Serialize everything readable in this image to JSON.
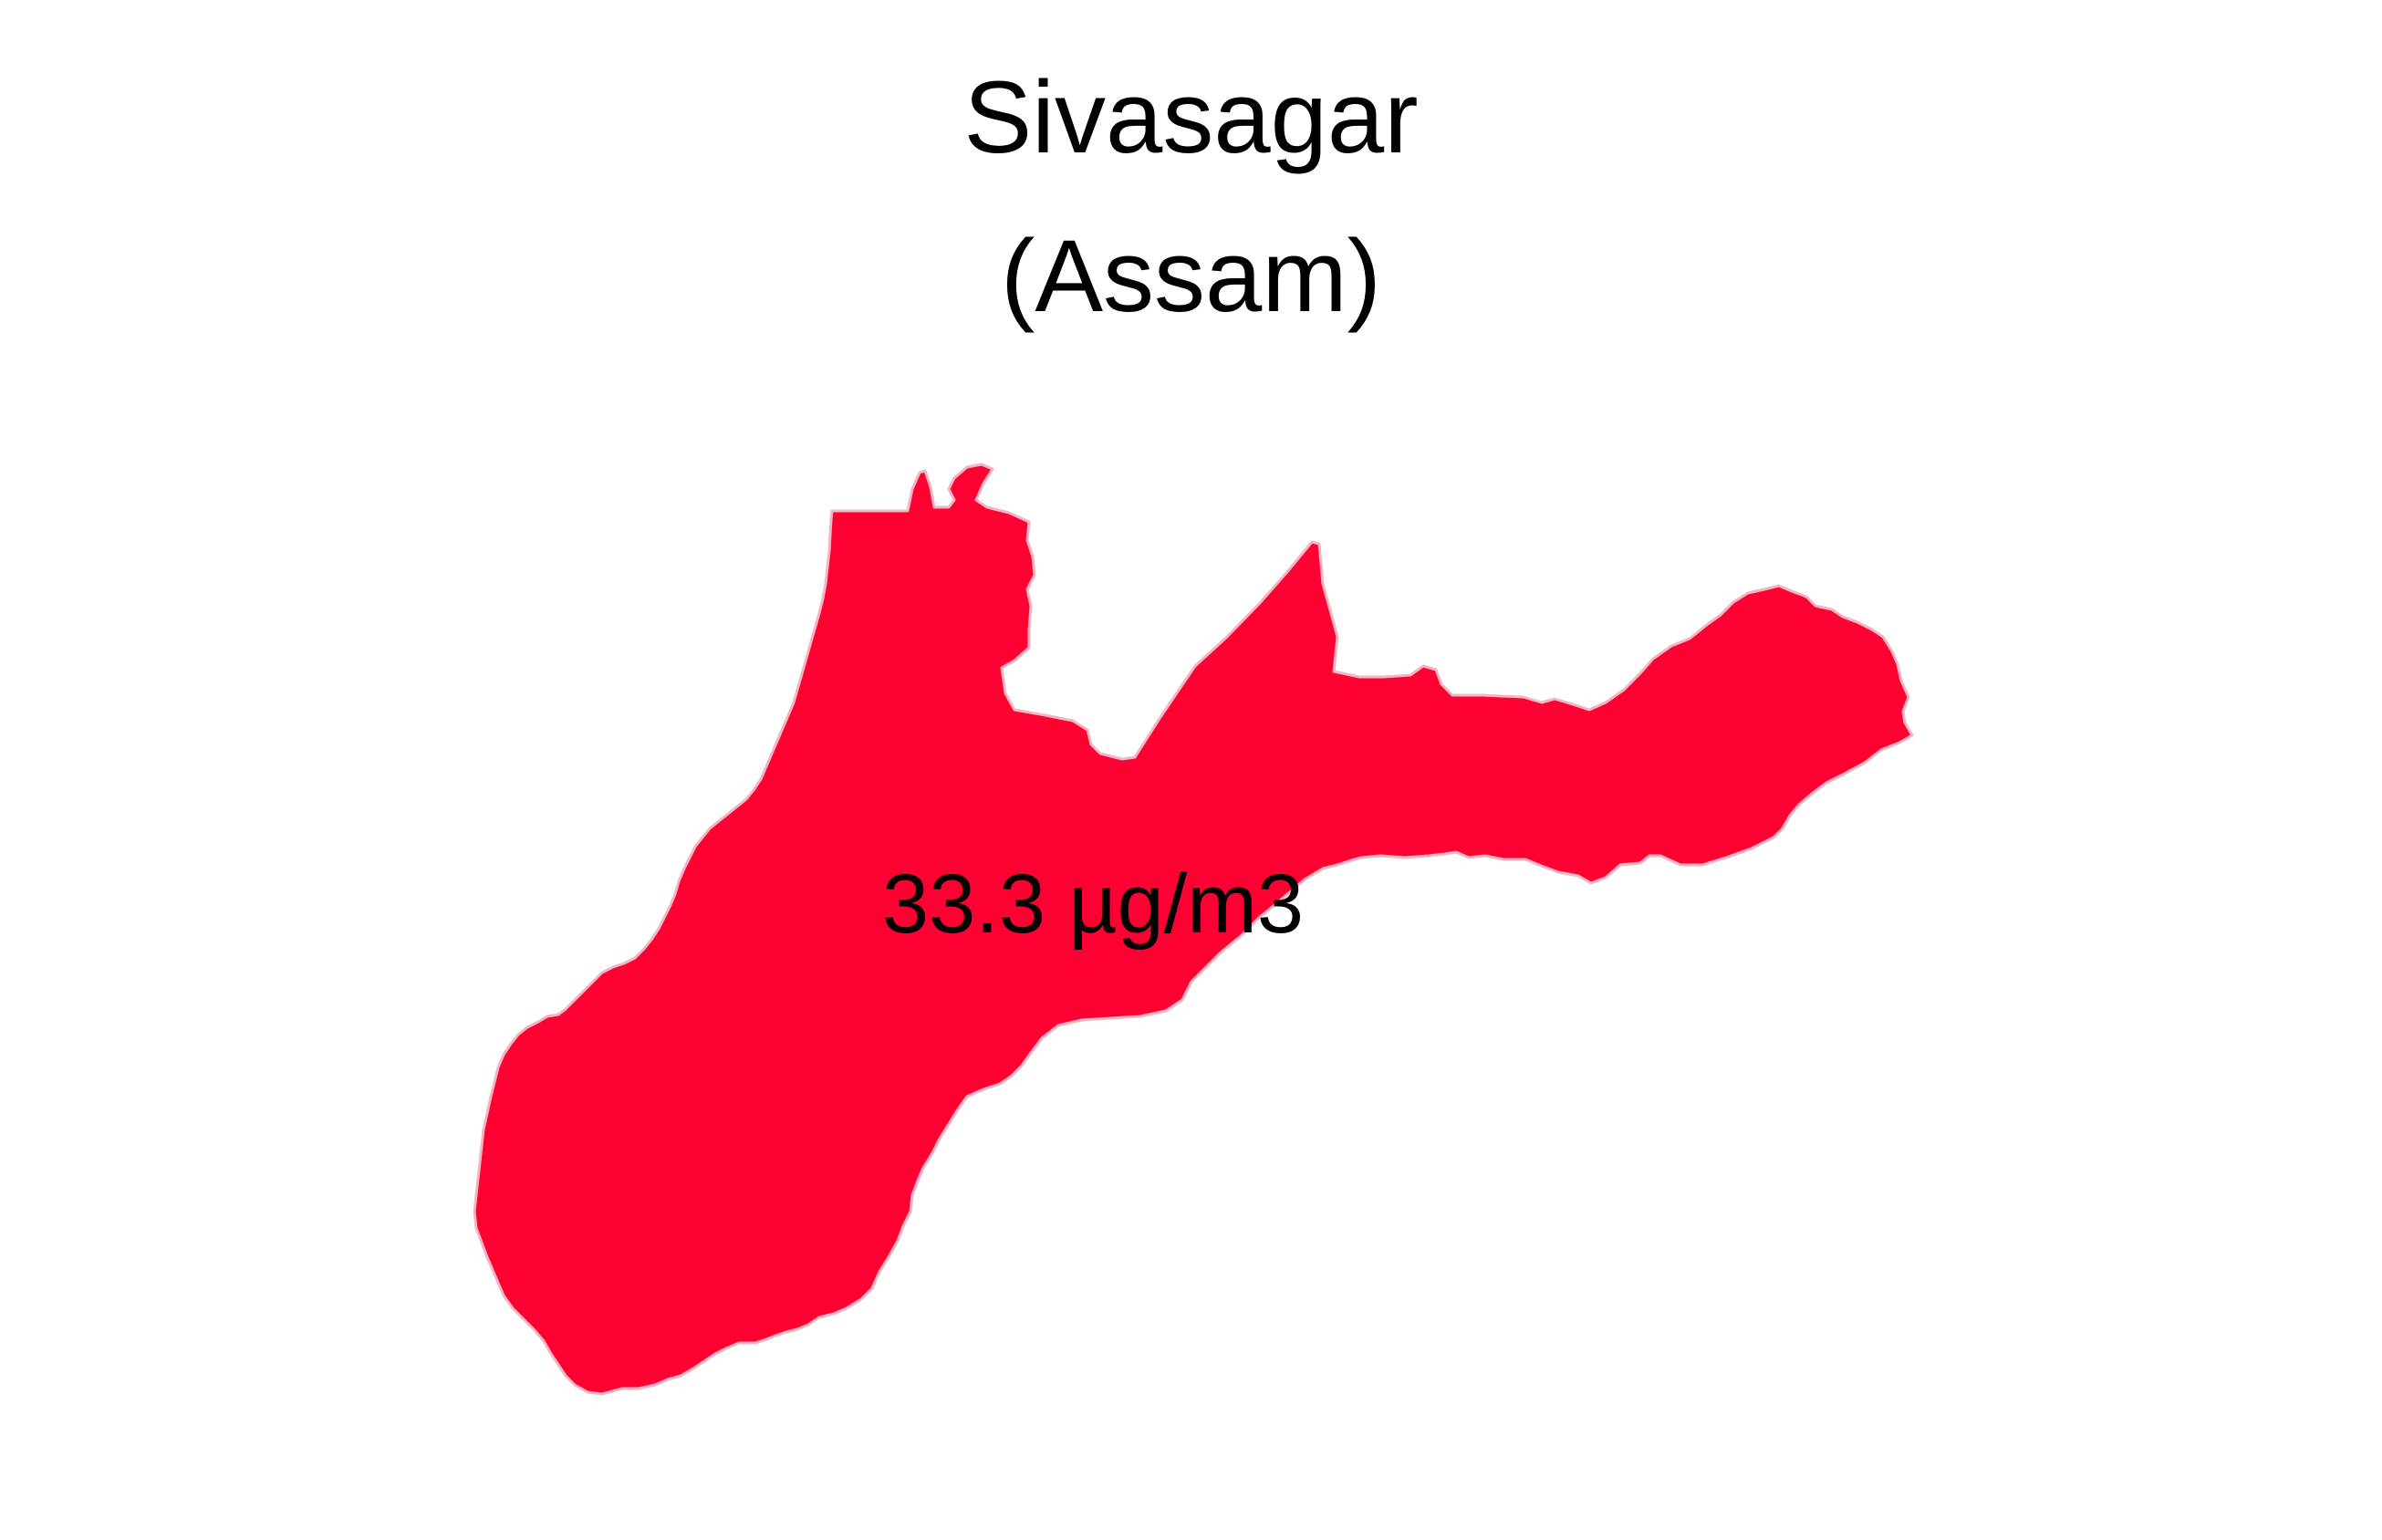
{
  "map": {
    "title": "Sivasagar",
    "subtitle": "(Assam)",
    "region": {
      "name": "Sivasagar",
      "value_label": "33.3 µg/m3",
      "value": 33.3,
      "unit": "µg/m3",
      "fill_color": "#ff0033",
      "border_color": "#f3b6c0"
    },
    "background_color": "#ffffff"
  }
}
